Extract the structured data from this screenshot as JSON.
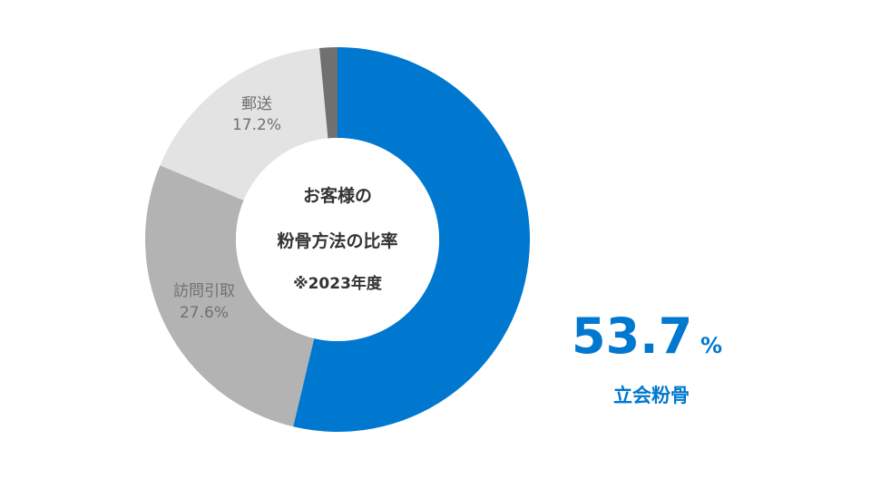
{
  "chart_data": {
    "type": "pie",
    "donut": true,
    "start_angle_deg": 0,
    "direction": "clockwise",
    "slices": [
      {
        "label": "立会粉骨",
        "value": 53.7,
        "color": "#0078d0"
      },
      {
        "label": "訪問引取",
        "value": 27.6,
        "color": "#b3b3b3"
      },
      {
        "label": "郵送",
        "value": 17.2,
        "color": "#e3e3e3"
      },
      {
        "label": "",
        "value": 1.5,
        "color": "#707070"
      }
    ],
    "center_title_lines": [
      "お客様の",
      "粉骨方法の比率"
    ],
    "center_note": "※2023年度",
    "slice_labels": [
      {
        "name": "訪問引取",
        "value_text": "27.6%"
      },
      {
        "name": "郵送",
        "value_text": "17.2%"
      }
    ],
    "highlight": {
      "value_text": "53.7",
      "unit": "%",
      "name": "立会粉骨"
    }
  }
}
